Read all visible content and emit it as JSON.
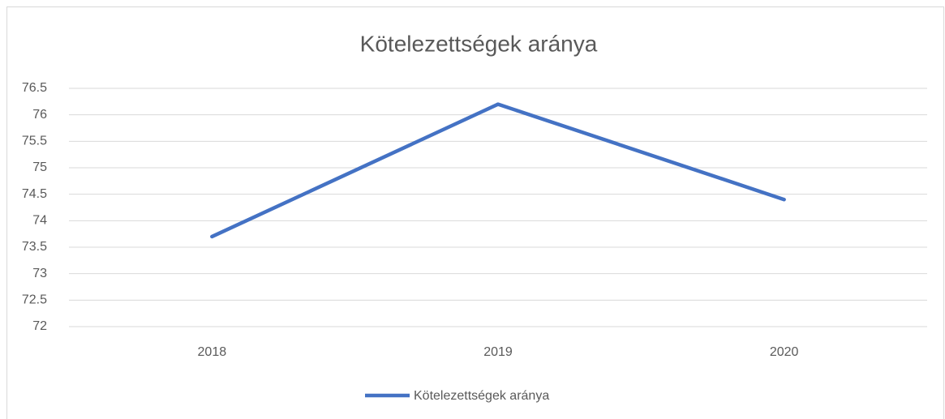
{
  "chart_data": {
    "type": "line",
    "title": "Kötelezettségek aránya",
    "categories": [
      "2018",
      "2019",
      "2020"
    ],
    "series": [
      {
        "name": "Kötelezettségek aránya",
        "color": "#4472c4",
        "values": [
          73.7,
          76.2,
          74.4
        ]
      }
    ],
    "ylim": [
      72,
      76.5
    ],
    "yticks": [
      72,
      72.5,
      73,
      73.5,
      74,
      74.5,
      75,
      75.5,
      76,
      76.5
    ],
    "grid": true,
    "legend": "bottom"
  }
}
